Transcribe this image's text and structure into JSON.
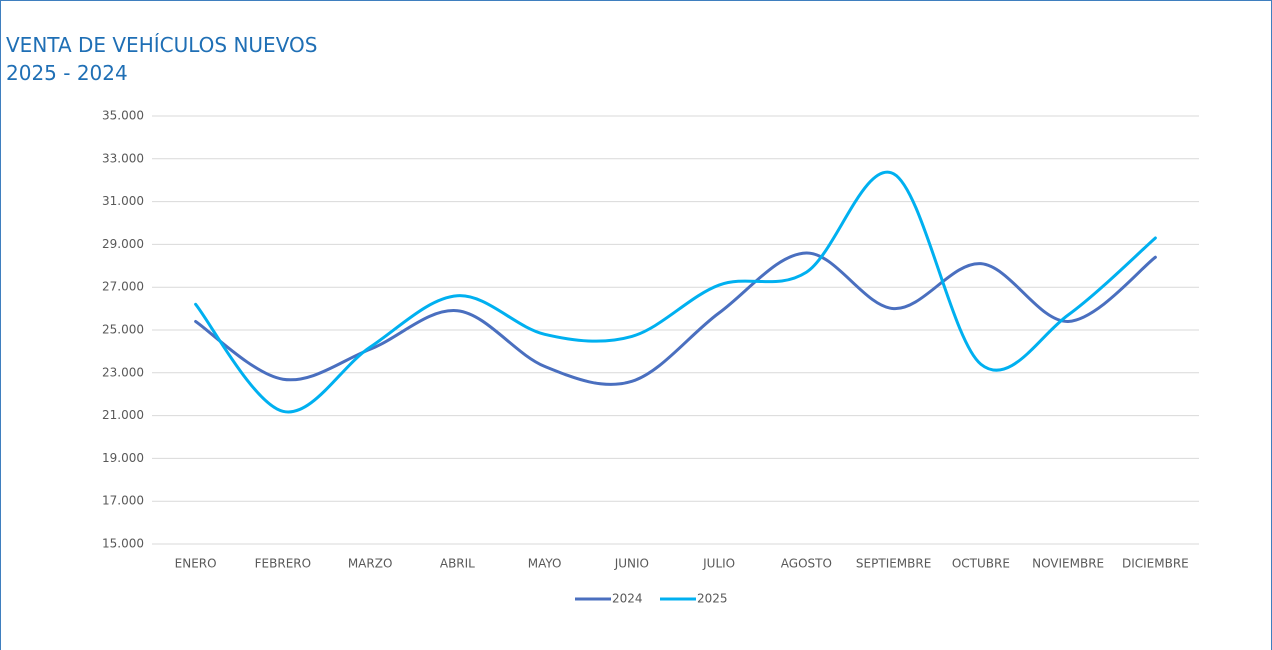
{
  "chart_data": {
    "type": "line",
    "title": [
      "VENTA DE VEHÍCULOS NUEVOS",
      "2025 - 2024"
    ],
    "categories": [
      "ENERO",
      "FEBRERO",
      "MARZO",
      "ABRIL",
      "MAYO",
      "JUNIO",
      "JULIO",
      "AGOSTO",
      "SEPTIEMBRE",
      "OCTUBRE",
      "NOVIEMBRE",
      "DICIEMBRE"
    ],
    "series": [
      {
        "name": "2024",
        "color": "#4a6fbf",
        "values": [
          25400,
          22700,
          24100,
          25900,
          23300,
          22600,
          25800,
          28600,
          26000,
          28100,
          25400,
          28400
        ]
      },
      {
        "name": "2025",
        "color": "#00b0f0",
        "values": [
          26200,
          21200,
          24200,
          26600,
          24800,
          24700,
          27100,
          27700,
          32300,
          23400,
          25700,
          29300
        ]
      }
    ],
    "ylim": [
      15000,
      35000
    ],
    "yticks": [
      {
        "value": 15000,
        "label": "15.000"
      },
      {
        "value": 17000,
        "label": "17.000"
      },
      {
        "value": 19000,
        "label": "19.000"
      },
      {
        "value": 21000,
        "label": "21.000"
      },
      {
        "value": 23000,
        "label": "23.000"
      },
      {
        "value": 25000,
        "label": "25.000"
      },
      {
        "value": 27000,
        "label": "27.000"
      },
      {
        "value": 29000,
        "label": "29.000"
      },
      {
        "value": 31000,
        "label": "31.000"
      },
      {
        "value": 33000,
        "label": "33.000"
      },
      {
        "value": 35000,
        "label": "35.000"
      }
    ],
    "grid": true,
    "smooth": true,
    "legend": "bottom"
  }
}
